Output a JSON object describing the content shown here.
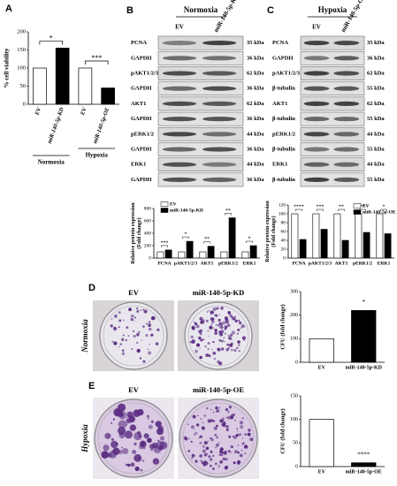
{
  "panel_labels": [
    "A",
    "B",
    "C",
    "D",
    "E"
  ],
  "blots": [
    {
      "condition": "Normoxia",
      "lanes": [
        "EV",
        "miR-140-5p-KD"
      ],
      "rows": [
        {
          "protein": "PCNA",
          "size": "35 kDa"
        },
        {
          "protein": "GAPDH",
          "size": "36 kDa"
        },
        {
          "protein": "pAKT1/2/3",
          "size": "62 kDa"
        },
        {
          "protein": "GAPDH",
          "size": "36 kDa"
        },
        {
          "protein": "AKT1",
          "size": "62 kDa"
        },
        {
          "protein": "GAPDH",
          "size": "36 kDa"
        },
        {
          "protein": "pERK1/2",
          "size": "44 kDa"
        },
        {
          "protein": "GAPDH",
          "size": "36 kDa"
        },
        {
          "protein": "ERK1",
          "size": "44 kDa"
        },
        {
          "protein": "GAPDH",
          "size": "36 kDa"
        }
      ]
    },
    {
      "condition": "Hypoxia",
      "lanes": [
        "EV",
        "miR-140-5p-OE"
      ],
      "rows": [
        {
          "protein": "PCNA",
          "size": "35 kDa"
        },
        {
          "protein": "GAPDH",
          "size": "36 kDa"
        },
        {
          "protein": "pAKT1/2/3",
          "size": "62 kDa"
        },
        {
          "protein": "β-tubulin",
          "size": "55 kDa"
        },
        {
          "protein": "AKT1",
          "size": "62 kDa"
        },
        {
          "protein": "β-tubulin",
          "size": "55 kDa"
        },
        {
          "protein": "pERK1/2",
          "size": "44 kDa"
        },
        {
          "protein": "β-tubulin",
          "size": "55 kDa"
        },
        {
          "protein": "ERK1",
          "size": "44 kDa"
        },
        {
          "protein": "β-tubulin",
          "size": "55 kDa"
        }
      ]
    }
  ],
  "colony_panels": [
    {
      "condition": "Normoxia",
      "images": [
        "EV",
        "miR-140-5p-KD"
      ]
    },
    {
      "condition": "Hypoxia",
      "images": [
        "EV",
        "miR-140-5p-OE"
      ]
    }
  ],
  "chart_data": [
    {
      "type": "bar",
      "ylabel": [
        "% cell viability"
      ],
      "categories": [
        "EV",
        "miR-140-5p-KD",
        "EV",
        "miR-140-5p-OE"
      ],
      "values": [
        100,
        155,
        100,
        45
      ],
      "colors": [
        "#ffffff",
        "#000000",
        "#ffffff",
        "#000000"
      ],
      "groups": [
        "Normoxia",
        "Hypoxia"
      ],
      "significance": [
        "*",
        "***"
      ],
      "ylim": [
        0,
        200
      ],
      "yticks": [
        0,
        50,
        100,
        150,
        200
      ]
    },
    {
      "type": "bar",
      "ylabel": [
        "Relative protein expression",
        "(Fold change)"
      ],
      "categories": [
        "PCNA",
        "pAKT1/2/3",
        "AKT1",
        "pERK1/2",
        "ERK1"
      ],
      "series": [
        {
          "name": "EV",
          "color": "#ffffff",
          "values": [
            100,
            100,
            100,
            100,
            100
          ]
        },
        {
          "name": "miR-140-5p-KD",
          "color": "#000000",
          "values": [
            130,
            270,
            190,
            650,
            200
          ]
        }
      ],
      "significance": [
        "***",
        "*",
        "**",
        "**",
        "*"
      ],
      "ylim": [
        0,
        800
      ],
      "yticks": [
        0,
        200,
        400,
        600,
        800
      ]
    },
    {
      "type": "bar",
      "ylabel": [
        "Relative protein expression",
        "(Fold change)"
      ],
      "categories": [
        "PCNA",
        "pAKT1/2/3",
        "AKT1",
        "pERK1/2",
        "ERK1"
      ],
      "series": [
        {
          "name": "EV",
          "color": "#ffffff",
          "values": [
            100,
            100,
            100,
            100,
            100
          ]
        },
        {
          "name": "miR-140-5p-OE",
          "color": "#000000",
          "values": [
            42,
            65,
            40,
            58,
            55
          ]
        }
      ],
      "significance": [
        "****",
        "***",
        "**",
        "**",
        "*"
      ],
      "ylim": [
        0,
        120
      ],
      "yticks": [
        0,
        20,
        40,
        60,
        80,
        100,
        120
      ]
    },
    {
      "type": "bar",
      "ylabel": [
        "CFU (fold change)"
      ],
      "categories": [
        "EV",
        "miR-140-5p-KD"
      ],
      "values": [
        100,
        220
      ],
      "colors": [
        "#ffffff",
        "#000000"
      ],
      "significance": [
        "*"
      ],
      "ylim": [
        0,
        300
      ],
      "yticks": [
        0,
        100,
        200,
        300
      ]
    },
    {
      "type": "bar",
      "ylabel": [
        "CFU (fold change)"
      ],
      "categories": [
        "EV",
        "miR-140-5p-OE"
      ],
      "values": [
        100,
        8
      ],
      "colors": [
        "#ffffff",
        "#000000"
      ],
      "significance": [
        "****"
      ],
      "ylim": [
        0,
        150
      ],
      "yticks": [
        0,
        50,
        100,
        150
      ]
    }
  ]
}
